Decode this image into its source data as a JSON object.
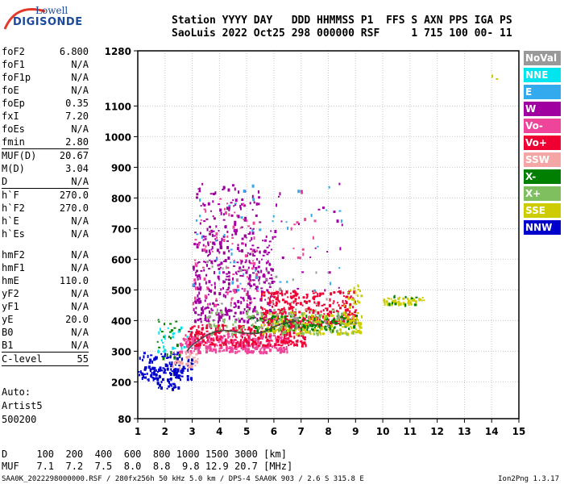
{
  "logo": {
    "line1": "Lowell",
    "line2": "DIGISONDE"
  },
  "header": {
    "line1": "Station YYYY DAY   DDD HHMMSS P1  FFS S AXN PPS IGA PS",
    "line2": "SaoLuis 2022 Oct25 298 000000 RSF     1 715 100 00- 11"
  },
  "params": [
    {
      "name": "foF2",
      "value": "6.800"
    },
    {
      "name": "foF1",
      "value": "N/A"
    },
    {
      "name": "foF1p",
      "value": "N/A"
    },
    {
      "name": "foE",
      "value": "N/A"
    },
    {
      "name": "foEp",
      "value": "0.35"
    },
    {
      "name": "fxI",
      "value": "7.20"
    },
    {
      "name": "foEs",
      "value": "N/A"
    },
    {
      "name": "fmin",
      "value": "2.80"
    },
    {
      "sep": true
    },
    {
      "name": "MUF(D)",
      "value": "20.67"
    },
    {
      "name": "M(D)",
      "value": "3.04"
    },
    {
      "name": "D",
      "value": "N/A"
    },
    {
      "sep": true
    },
    {
      "name": "h`F",
      "value": "270.0"
    },
    {
      "name": "h`F2",
      "value": "270.0"
    },
    {
      "name": "h`E",
      "value": "N/A"
    },
    {
      "name": "h`Es",
      "value": "N/A"
    },
    {
      "gap": true
    },
    {
      "name": "hmF2",
      "value": "N/A"
    },
    {
      "name": "hmF1",
      "value": "N/A"
    },
    {
      "name": "hmE",
      "value": "110.0"
    },
    {
      "name": "yF2",
      "value": "N/A"
    },
    {
      "name": "yF1",
      "value": "N/A"
    },
    {
      "name": "yE",
      "value": "20.0"
    },
    {
      "name": "B0",
      "value": "N/A"
    },
    {
      "name": "B1",
      "value": "N/A"
    },
    {
      "sep": true
    },
    {
      "name": "C-level",
      "value": "55"
    },
    {
      "sep": true
    }
  ],
  "auto": {
    "line1": "Auto:",
    "line2": "Artist5",
    "line3": "500200"
  },
  "legend": [
    {
      "label": "NoVal",
      "color": "#999999"
    },
    {
      "label": "NNE",
      "color": "#00e5ee"
    },
    {
      "label": "E",
      "color": "#33aaee"
    },
    {
      "label": "W",
      "color": "#a000a0"
    },
    {
      "label": "Vo-",
      "color": "#ee4499"
    },
    {
      "label": "Vo+",
      "color": "#ee0033"
    },
    {
      "label": "SSW",
      "color": "#f4a6a6"
    },
    {
      "label": "X-",
      "color": "#007f00"
    },
    {
      "label": "X+",
      "color": "#7fbf5f"
    },
    {
      "label": "SSE",
      "color": "#cccc00"
    },
    {
      "label": "NNW",
      "color": "#0000cc"
    }
  ],
  "bottom": {
    "line1": "D     100  200  400  600  800 1000 1500 3000 [km]",
    "line2": "MUF   7.1  7.2  7.5  8.0  8.8  9.8 12.9 20.7 [MHz]"
  },
  "footer": {
    "left": "SAA0K_2022298000000.RSF / 280fx256h 50 kHz 5.0 km / DPS-4 SAA0K 903 / 2.6 S 315.8 E",
    "right": "Ion2Png 1.3.17"
  },
  "chart_data": {
    "type": "scatter",
    "title": "",
    "xlabel": "",
    "ylabel": "",
    "xlim": [
      1,
      15
    ],
    "ylim": [
      80,
      1280
    ],
    "xticks": [
      1,
      2,
      3,
      4,
      5,
      6,
      7,
      8,
      9,
      10,
      11,
      12,
      13,
      14,
      15
    ],
    "yticks": [
      80,
      200,
      300,
      400,
      500,
      600,
      700,
      800,
      900,
      1000,
      1100,
      1280
    ],
    "ytick_labels": [
      "80",
      "200",
      "300",
      "400",
      "500",
      "600",
      "700",
      "800",
      "900",
      "1000",
      "1100",
      "1280"
    ],
    "grid": true,
    "trace": {
      "name": "",
      "x": [
        2.8,
        3.0,
        3.3,
        3.6,
        3.9,
        4.2,
        4.5,
        4.8,
        5.1,
        5.4,
        5.7,
        6.0,
        6.3,
        6.6,
        6.8
      ],
      "y": [
        300,
        320,
        340,
        355,
        365,
        368,
        365,
        360,
        358,
        358,
        365,
        380,
        390,
        395,
        400
      ],
      "color": "#444444"
    },
    "clusters": [
      {
        "x0": 1.0,
        "x1": 3.0,
        "y0": 210,
        "y1": 300,
        "color": "#0000cc",
        "n": 130
      },
      {
        "x0": 1.5,
        "x1": 2.5,
        "y0": 180,
        "y1": 260,
        "color": "#0000cc",
        "n": 40
      },
      {
        "x0": 1.7,
        "x1": 2.6,
        "y0": 280,
        "y1": 420,
        "color": "#007f00",
        "n": 25
      },
      {
        "x0": 1.7,
        "x1": 3.0,
        "y0": 300,
        "y1": 390,
        "color": "#00e5ee",
        "n": 30
      },
      {
        "x0": 2.5,
        "x1": 6.5,
        "y0": 300,
        "y1": 360,
        "color": "#ee4499",
        "n": 320
      },
      {
        "x0": 2.8,
        "x1": 7.2,
        "y0": 320,
        "y1": 390,
        "color": "#ee0033",
        "n": 260
      },
      {
        "x0": 3.0,
        "x1": 6.0,
        "y0": 400,
        "y1": 700,
        "color": "#a000a0",
        "n": 360
      },
      {
        "x0": 3.0,
        "x1": 5.5,
        "y0": 650,
        "y1": 850,
        "color": "#a000a0",
        "n": 80
      },
      {
        "x0": 3.0,
        "x1": 5.5,
        "y0": 450,
        "y1": 800,
        "color": "#ee4499",
        "n": 80
      },
      {
        "x0": 5.5,
        "x1": 9.0,
        "y0": 390,
        "y1": 500,
        "color": "#ee0033",
        "n": 340
      },
      {
        "x0": 5.5,
        "x1": 9.2,
        "y0": 360,
        "y1": 430,
        "color": "#cccc00",
        "n": 170
      },
      {
        "x0": 5.0,
        "x1": 9.0,
        "y0": 370,
        "y1": 420,
        "color": "#007f00",
        "n": 110
      },
      {
        "x0": 3.5,
        "x1": 9.0,
        "y0": 360,
        "y1": 440,
        "color": "#7fbf5f",
        "n": 110
      },
      {
        "x0": 3.0,
        "x1": 8.5,
        "y0": 500,
        "y1": 850,
        "color": "#a000a0",
        "n": 55
      },
      {
        "x0": 3.0,
        "x1": 8.5,
        "y0": 500,
        "y1": 850,
        "color": "#33aaee",
        "n": 45
      },
      {
        "x0": 3.5,
        "x1": 8.5,
        "y0": 380,
        "y1": 600,
        "color": "#999999",
        "n": 45
      },
      {
        "x0": 8.5,
        "x1": 9.2,
        "y0": 390,
        "y1": 520,
        "color": "#cccc00",
        "n": 40
      },
      {
        "x0": 10.0,
        "x1": 11.5,
        "y0": 455,
        "y1": 480,
        "color": "#cccc00",
        "n": 45
      },
      {
        "x0": 10.2,
        "x1": 11.2,
        "y0": 455,
        "y1": 485,
        "color": "#007f00",
        "n": 12
      },
      {
        "x0": 2.2,
        "x1": 3.2,
        "y0": 250,
        "y1": 300,
        "color": "#f4a6a6",
        "n": 35
      },
      {
        "x0": 6.5,
        "x1": 7.5,
        "y0": 600,
        "y1": 850,
        "color": "#ee4499",
        "n": 12
      },
      {
        "x0": 13.9,
        "x1": 14.2,
        "y0": 1190,
        "y1": 1205,
        "color": "#cccc00",
        "n": 2
      }
    ]
  }
}
